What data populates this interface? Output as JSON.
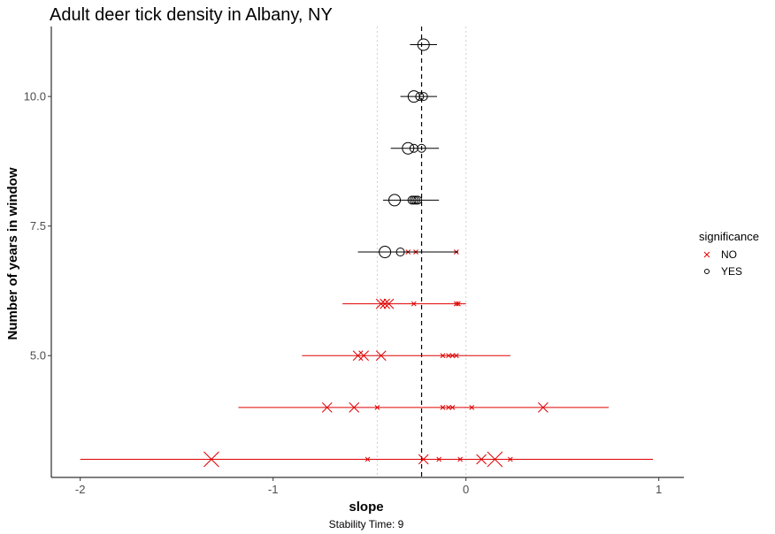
{
  "chart_data": {
    "type": "scatter",
    "title": "Adult deer tick density in Albany, NY",
    "xlabel": "slope",
    "ylabel": "Number of years in window",
    "caption": "Stability Time: 9",
    "xlim": [
      -2.15,
      1.13
    ],
    "ylim": [
      2.65,
      11.35
    ],
    "x_ticks": [
      -2,
      -1,
      0,
      1
    ],
    "x_tick_labels": [
      "-2",
      "-1",
      "0",
      "1"
    ],
    "y_ticks": [
      5.0,
      7.5,
      10.0
    ],
    "y_tick_labels": [
      "5.0",
      "7.5",
      "10.0"
    ],
    "grid": false,
    "reference_lines": {
      "overall_slope": -0.23,
      "dotted_bounds": [
        -0.46,
        0.0
      ]
    },
    "legend": {
      "title": "significance",
      "position": "right",
      "entries": [
        {
          "label": "NO",
          "shape": "x",
          "color": "#e00000"
        },
        {
          "label": "YES",
          "shape": "circle",
          "color": "#000000"
        }
      ]
    },
    "colors": {
      "NO": "#e00000",
      "YES": "#000000"
    },
    "windows": [
      {
        "years": 3,
        "significance": "NO",
        "lo": -2.0,
        "hi": 0.97,
        "points": [
          {
            "x": -1.32,
            "size": 3
          },
          {
            "x": -0.51,
            "size": 1
          },
          {
            "x": -0.22,
            "size": 2
          },
          {
            "x": -0.14,
            "size": 1
          },
          {
            "x": -0.03,
            "size": 1
          },
          {
            "x": 0.08,
            "size": 2
          },
          {
            "x": 0.15,
            "size": 3
          },
          {
            "x": 0.23,
            "size": 1
          }
        ]
      },
      {
        "years": 4,
        "significance": "NO",
        "lo": -1.18,
        "hi": 0.74,
        "points": [
          {
            "x": -0.72,
            "size": 2
          },
          {
            "x": -0.58,
            "size": 2
          },
          {
            "x": -0.46,
            "size": 1
          },
          {
            "x": -0.12,
            "size": 1
          },
          {
            "x": -0.09,
            "size": 1
          },
          {
            "x": -0.07,
            "size": 1
          },
          {
            "x": 0.03,
            "size": 1
          },
          {
            "x": 0.4,
            "size": 2
          }
        ]
      },
      {
        "years": 5,
        "significance": "NO",
        "lo": -0.85,
        "hi": 0.23,
        "points": [
          {
            "x": -0.56,
            "size": 2
          },
          {
            "x": -0.53,
            "size": 2
          },
          {
            "x": -0.44,
            "size": 2
          },
          {
            "x": -0.12,
            "size": 1
          },
          {
            "x": -0.09,
            "size": 1
          },
          {
            "x": -0.07,
            "size": 1
          },
          {
            "x": -0.05,
            "size": 1
          }
        ]
      },
      {
        "years": 6,
        "significance": "NO",
        "lo": -0.64,
        "hi": 0.0,
        "points": [
          {
            "x": -0.44,
            "size": 2
          },
          {
            "x": -0.42,
            "size": 2
          },
          {
            "x": -0.4,
            "size": 2
          },
          {
            "x": -0.27,
            "size": 1
          },
          {
            "x": -0.05,
            "size": 1
          },
          {
            "x": -0.04,
            "size": 1
          }
        ]
      },
      {
        "years": 7,
        "significance": "NO",
        "lo": -0.56,
        "hi": -0.04,
        "points": [
          {
            "x": -0.3,
            "size": 1
          },
          {
            "x": -0.26,
            "size": 1
          },
          {
            "x": -0.05,
            "size": 1
          }
        ]
      },
      {
        "years": 7,
        "significance": "YES",
        "lo": -0.56,
        "hi": -0.04,
        "points": [
          {
            "x": -0.42,
            "size": 3
          },
          {
            "x": -0.34,
            "size": 2
          }
        ]
      },
      {
        "years": 8,
        "significance": "YES",
        "lo": -0.43,
        "hi": -0.14,
        "points": [
          {
            "x": -0.37,
            "size": 3
          },
          {
            "x": -0.28,
            "size": 2
          },
          {
            "x": -0.27,
            "size": 2
          },
          {
            "x": -0.26,
            "size": 2
          },
          {
            "x": -0.25,
            "size": 2
          }
        ]
      },
      {
        "years": 9,
        "significance": "YES",
        "lo": -0.39,
        "hi": -0.14,
        "points": [
          {
            "x": -0.3,
            "size": 3
          },
          {
            "x": -0.27,
            "size": 2
          },
          {
            "x": -0.23,
            "size": 2
          }
        ]
      },
      {
        "years": 10,
        "significance": "YES",
        "lo": -0.34,
        "hi": -0.15,
        "points": [
          {
            "x": -0.27,
            "size": 3
          },
          {
            "x": -0.24,
            "size": 2
          },
          {
            "x": -0.22,
            "size": 2
          }
        ]
      },
      {
        "years": 11,
        "significance": "YES",
        "lo": -0.29,
        "hi": -0.15,
        "points": [
          {
            "x": -0.22,
            "size": 3
          }
        ]
      }
    ]
  }
}
